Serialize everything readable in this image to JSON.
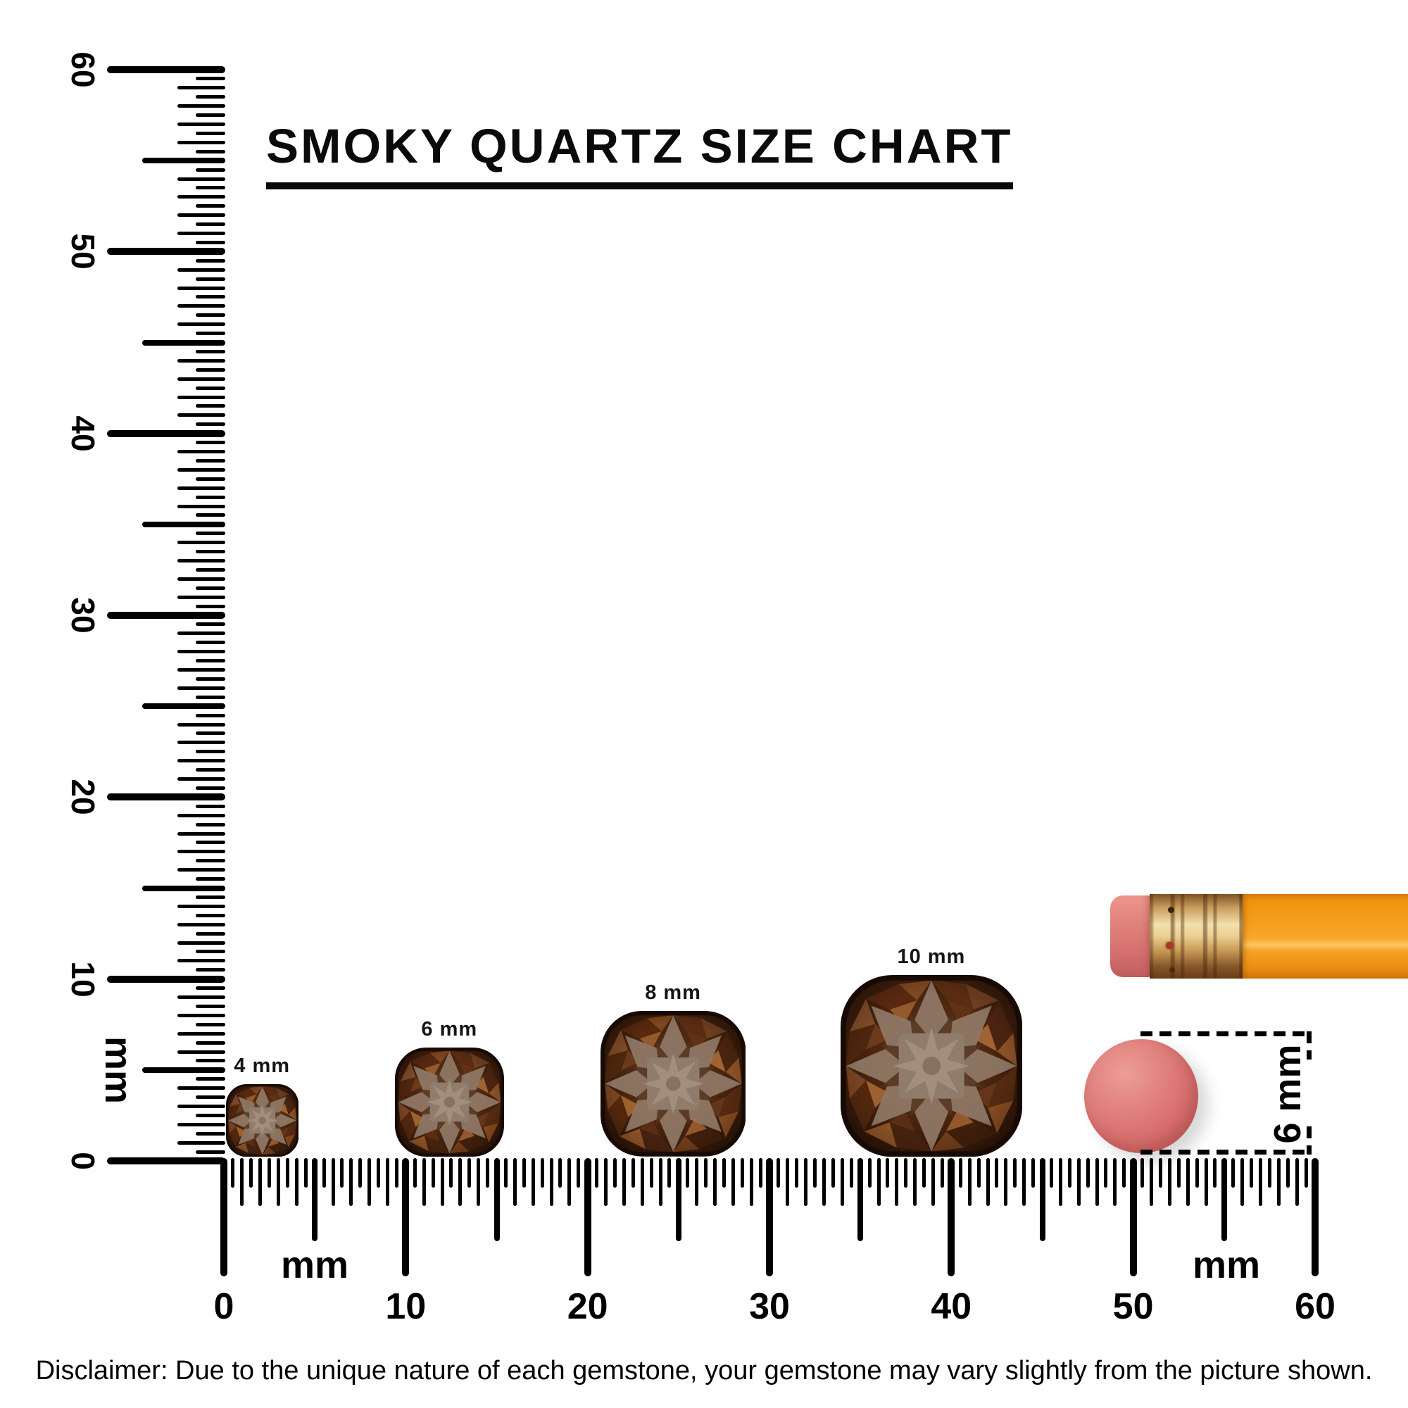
{
  "title": {
    "text": "SMOKY QUARTZ SIZE CHART"
  },
  "rulers": {
    "vertical": {
      "unit_label": "mm",
      "range_mm": [
        0,
        60
      ],
      "tick_step_mm": 0.5,
      "tick_labels": [
        {
          "value_mm": 0,
          "label": "0"
        },
        {
          "value_mm": 10,
          "label": "10"
        },
        {
          "value_mm": 20,
          "label": "20"
        },
        {
          "value_mm": 30,
          "label": "30"
        },
        {
          "value_mm": 40,
          "label": "40"
        },
        {
          "value_mm": 50,
          "label": "50"
        },
        {
          "value_mm": 60,
          "label": "60"
        }
      ]
    },
    "horizontal": {
      "unit_label": "mm",
      "range_mm": [
        0,
        60
      ],
      "tick_step_mm": 0.5,
      "tick_labels": [
        {
          "value_mm": 0,
          "label": "0"
        },
        {
          "value_mm": 10,
          "label": "10"
        },
        {
          "value_mm": 20,
          "label": "20"
        },
        {
          "value_mm": 30,
          "label": "30"
        },
        {
          "value_mm": 40,
          "label": "40"
        },
        {
          "value_mm": 50,
          "label": "50"
        },
        {
          "value_mm": 60,
          "label": "60"
        }
      ]
    }
  },
  "chart_data": {
    "type": "table",
    "title": "SMOKY QUARTZ SIZE CHART",
    "unit": "mm",
    "axis_range_mm": [
      0,
      60
    ],
    "gem_cut": "cushion",
    "gem_sizes_mm": [
      4,
      6,
      8,
      10
    ],
    "reference_object_size_mm": 6
  },
  "gems": [
    {
      "label": "4 mm",
      "size_mm": 4,
      "ruler_position_mm": 2.1
    },
    {
      "label": "6 mm",
      "size_mm": 6,
      "ruler_position_mm": 12.4
    },
    {
      "label": "8 mm",
      "size_mm": 8,
      "ruler_position_mm": 24.7
    },
    {
      "label": "10 mm",
      "size_mm": 10,
      "ruler_position_mm": 38.9
    }
  ],
  "reference_objects": {
    "eraser_disc": {
      "dimension_label": "6 mm",
      "diameter_mm": 6.3
    }
  },
  "disclaimer": "Disclaimer: Due to the unique nature of each gemstone, your gemstone may vary slightly from the picture shown.",
  "colors": {
    "ink": "#000000",
    "background": "#ffffff",
    "pencil_body": "#f59d1e",
    "pencil_ferrule": "#eccf92",
    "pencil_eraser": "#e0827b",
    "eraser_disc": "#d76f6d",
    "gem_dark": "#3a1d0d",
    "gem_mid": "#7b4522",
    "gem_light": "#95806e"
  }
}
